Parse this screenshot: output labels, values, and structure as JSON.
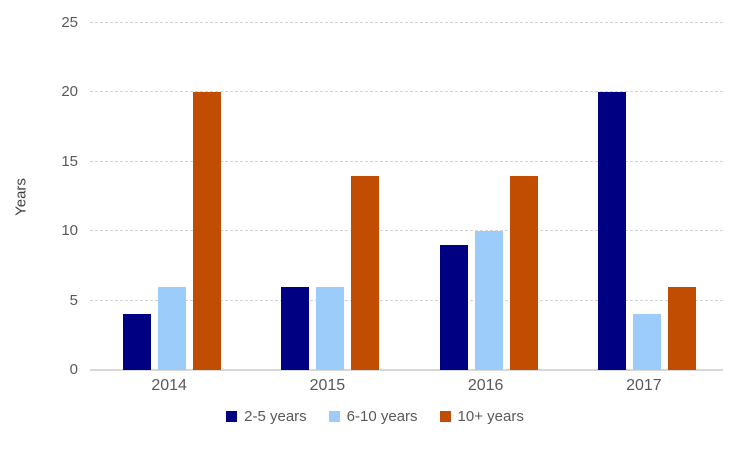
{
  "chart_data": {
    "type": "bar",
    "title": "",
    "xlabel": "",
    "ylabel": "Years",
    "categories": [
      "2014",
      "2015",
      "2016",
      "2017"
    ],
    "series": [
      {
        "name": "2-5 years",
        "color": "#000082",
        "values": [
          4,
          6,
          9,
          20
        ]
      },
      {
        "name": "6-10 years",
        "color": "#9CCDFA",
        "values": [
          6,
          6,
          10,
          4
        ]
      },
      {
        "name": "10+ years",
        "color": "#C04D01",
        "values": [
          20,
          14,
          14,
          6
        ]
      }
    ],
    "y_ticks": [
      0,
      5,
      10,
      15,
      20,
      25
    ],
    "ylim": [
      0,
      25
    ],
    "grid": true,
    "legend_position": "bottom"
  },
  "colors": {
    "background": "#FFFFFF",
    "gridline": "#D4D4D4",
    "axis_line": "#D8D8D8",
    "tick_label": "#595959",
    "axis_title": "#3F3F3F",
    "legend_text": "#595959"
  }
}
